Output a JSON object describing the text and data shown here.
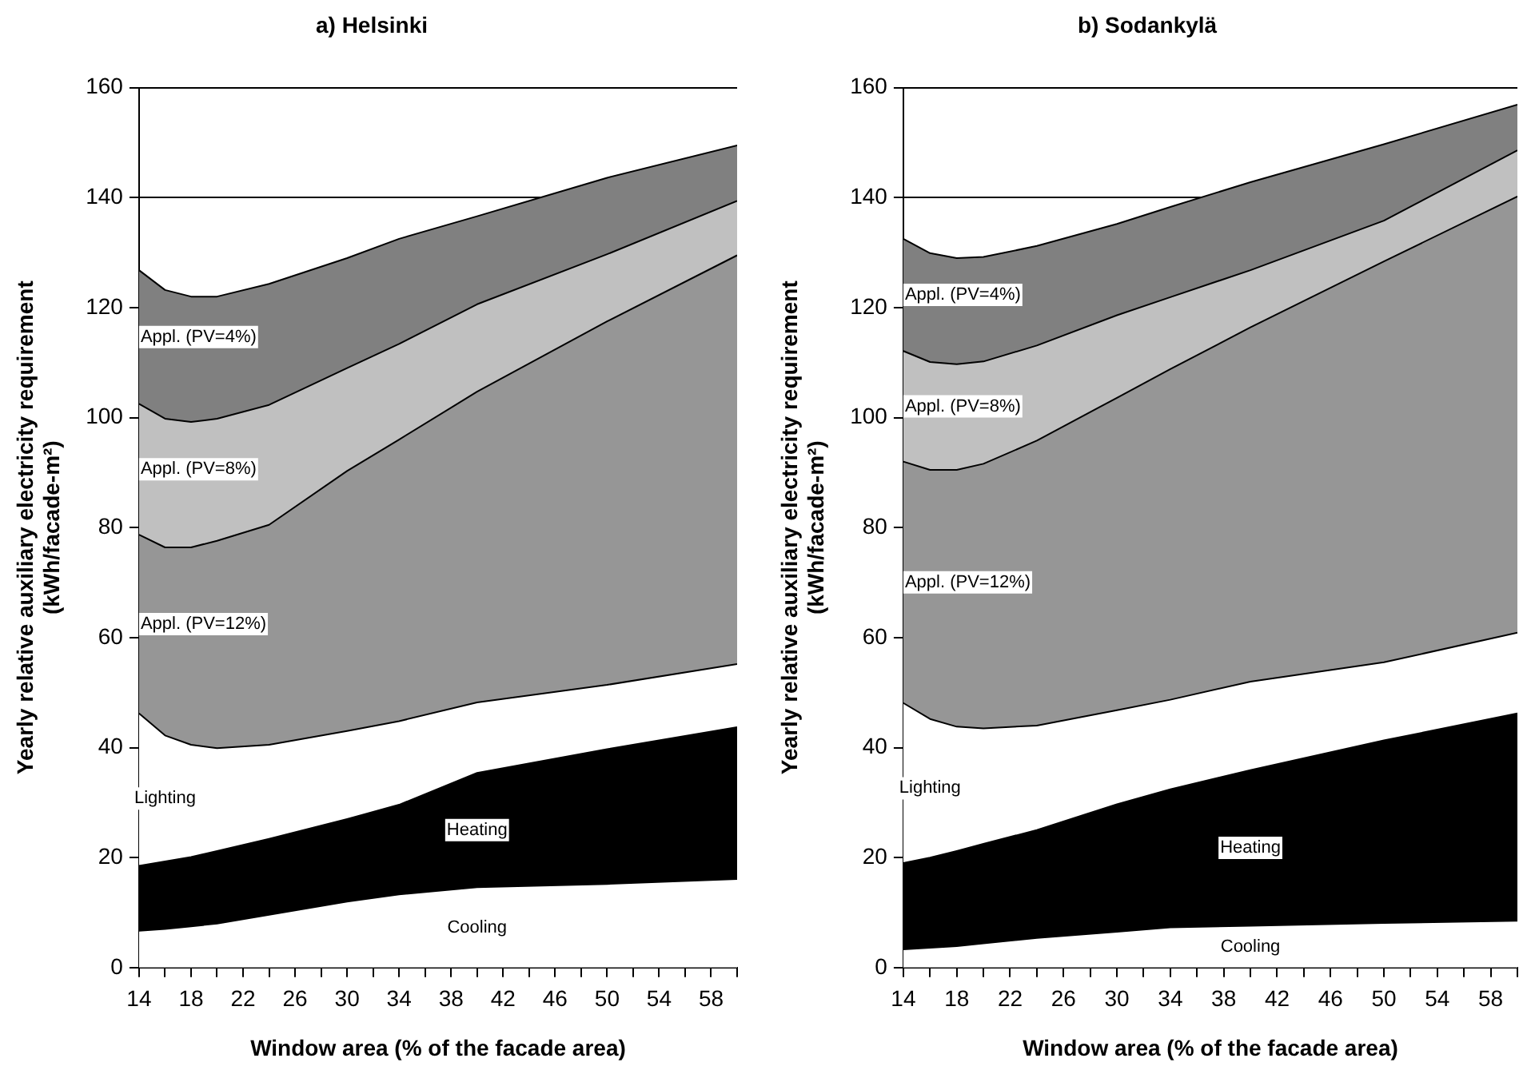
{
  "chart_data": [
    {
      "type": "area",
      "title": "a) Helsinki",
      "xlabel": "Window area (% of the facade area)",
      "ylabel": "Yearly relative auxiliary electricity requirement\n(kWh/facade-m²)",
      "stacked": true,
      "grid": "y",
      "legend": false,
      "x": [
        14,
        16,
        18,
        20,
        24,
        30,
        34,
        40,
        50,
        60
      ],
      "series": [
        {
          "name": "Cooling",
          "color": "#ffffff",
          "values": [
            6.7,
            7,
            7.5,
            8,
            9.6,
            12,
            13.3,
            14.6,
            15.2,
            16.1
          ]
        },
        {
          "name": "Heating",
          "color": "#000000",
          "values": [
            11.8,
            12.3,
            12.6,
            13.2,
            13.8,
            15,
            16.3,
            20.8,
            24.5,
            27.6
          ]
        },
        {
          "name": "Lighting",
          "color": "#ffffff",
          "values": [
            27.7,
            22.9,
            20.4,
            18.7,
            17.1,
            16,
            15.2,
            12.8,
            11.7,
            11.5
          ]
        },
        {
          "name": "Appl. (PV=12%)",
          "color": "#969696",
          "values": [
            32.5,
            34.2,
            35.9,
            37.7,
            40,
            47.3,
            51.2,
            56.5,
            66.1,
            74.3
          ]
        },
        {
          "name": "Appl. (PV=8%)",
          "color": "#c0c0c0",
          "values": [
            23.8,
            23.4,
            22.8,
            22.2,
            21.8,
            18.7,
            17.4,
            15.9,
            12.2,
            9.9
          ]
        },
        {
          "name": "Appl. (PV=4%)",
          "color": "#808080",
          "values": [
            24.3,
            23.4,
            22.8,
            22.2,
            22,
            20,
            19.1,
            16,
            13.9,
            10.1
          ]
        }
      ],
      "xlim": [
        14,
        60
      ],
      "xticks": [
        14,
        {
          "value": 16,
          "label": null
        },
        18,
        {
          "value": 20,
          "label": null
        },
        22,
        {
          "value": 24,
          "label": null
        },
        26,
        {
          "value": 28,
          "label": null
        },
        30,
        {
          "value": 32,
          "label": null
        },
        34,
        {
          "value": 36,
          "label": null
        },
        38,
        {
          "value": 40,
          "label": null
        },
        42,
        {
          "value": 44,
          "label": null
        },
        46,
        {
          "value": 48,
          "label": null
        },
        50,
        {
          "value": 52,
          "label": null
        },
        54,
        {
          "value": 56,
          "label": null
        },
        58,
        {
          "value": 60,
          "label": null
        }
      ],
      "ylim": [
        0,
        160
      ],
      "yticks": [
        0,
        20,
        40,
        60,
        80,
        100,
        120,
        140,
        160
      ]
    },
    {
      "type": "area",
      "title": "b) Sodankylä",
      "xlabel": "Window area (% of the facade area)",
      "ylabel": "Yearly relative auxiliary electricity requirement\n(kWh/facade-m²)",
      "stacked": true,
      "grid": "y",
      "legend": false,
      "x": [
        14,
        16,
        18,
        20,
        24,
        30,
        34,
        40,
        50,
        60
      ],
      "series": [
        {
          "name": "Cooling",
          "color": "#ffffff",
          "values": [
            3.3,
            3.6,
            3.9,
            4.4,
            5.4,
            6.5,
            7.3,
            7.6,
            8.1,
            8.5
          ]
        },
        {
          "name": "Heating",
          "color": "#000000",
          "values": [
            15.7,
            16.4,
            17.3,
            18.1,
            19.6,
            23.2,
            25.1,
            28.3,
            33.2,
            37.7
          ]
        },
        {
          "name": "Lighting",
          "color": "#ffffff",
          "values": [
            29.1,
            25.2,
            22.6,
            21,
            19,
            17.1,
            16.3,
            16.1,
            14.2,
            14.7
          ]
        },
        {
          "name": "Appl. (PV=12%)",
          "color": "#969696",
          "values": [
            43.9,
            45.3,
            46.7,
            48.1,
            51.8,
            56.8,
            60.1,
            64.4,
            72.9,
            79.3
          ]
        },
        {
          "name": "Appl. (PV=8%)",
          "color": "#c0c0c0",
          "values": [
            20.1,
            19.6,
            19.2,
            18.6,
            17.3,
            15,
            13.1,
            10.4,
            7.4,
            8.4
          ]
        },
        {
          "name": "Appl. (PV=4%)",
          "color": "#808080",
          "values": [
            20.4,
            19.8,
            19.3,
            19,
            18.1,
            16.6,
            16.4,
            16,
            13.9,
            8.3
          ]
        }
      ],
      "xlim": [
        14,
        60
      ],
      "xticks": [
        14,
        {
          "value": 16,
          "label": null
        },
        18,
        {
          "value": 20,
          "label": null
        },
        22,
        {
          "value": 24,
          "label": null
        },
        26,
        {
          "value": 28,
          "label": null
        },
        30,
        {
          "value": 32,
          "label": null
        },
        34,
        {
          "value": 36,
          "label": null
        },
        38,
        {
          "value": 40,
          "label": null
        },
        42,
        {
          "value": 44,
          "label": null
        },
        46,
        {
          "value": 48,
          "label": null
        },
        50,
        {
          "value": 52,
          "label": null
        },
        54,
        {
          "value": 56,
          "label": null
        },
        58,
        {
          "value": 60,
          "label": null
        }
      ],
      "ylim": [
        0,
        160
      ],
      "yticks": [
        0,
        20,
        40,
        60,
        80,
        100,
        120,
        140,
        160
      ]
    }
  ]
}
